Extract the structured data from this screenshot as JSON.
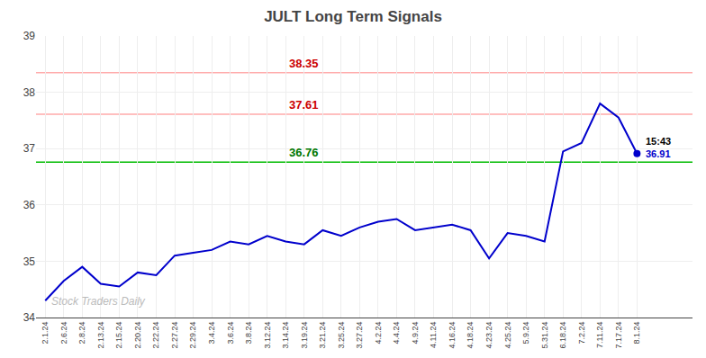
{
  "chart_data": {
    "type": "line",
    "title": "JULT Long Term Signals",
    "categories": [
      "2.1.24",
      "2.6.24",
      "2.8.24",
      "2.13.24",
      "2.15.24",
      "2.20.24",
      "2.22.24",
      "2.27.24",
      "2.29.24",
      "3.4.24",
      "3.6.24",
      "3.8.24",
      "3.12.24",
      "3.14.24",
      "3.19.24",
      "3.21.24",
      "3.25.24",
      "3.27.24",
      "4.2.24",
      "4.4.24",
      "4.9.24",
      "4.11.24",
      "4.16.24",
      "4.18.24",
      "4.23.24",
      "4.25.24",
      "5.9.24",
      "5.31.24",
      "6.18.24",
      "7.2.24",
      "7.11.24",
      "7.17.24",
      "8.1.24"
    ],
    "values": [
      34.3,
      34.65,
      34.9,
      34.6,
      34.55,
      34.8,
      34.75,
      35.1,
      35.15,
      35.2,
      35.35,
      35.3,
      35.45,
      35.35,
      35.3,
      35.55,
      35.45,
      35.6,
      35.7,
      35.75,
      35.55,
      35.6,
      35.65,
      35.55,
      35.05,
      35.5,
      35.45,
      35.35,
      36.95,
      37.1,
      37.8,
      37.55,
      36.91
    ],
    "color": "#0000cc",
    "hlines": [
      {
        "value": 38.35,
        "label": "38.35",
        "color": "#ffaaaa",
        "label_color": "#cc0000"
      },
      {
        "value": 37.61,
        "label": "37.61",
        "color": "#ffaaaa",
        "label_color": "#cc0000"
      },
      {
        "value": 36.76,
        "label": "36.76",
        "color": "#00bb00",
        "label_color": "#007700"
      }
    ],
    "annotations": [
      {
        "text": "Stock Traders Daily",
        "color": "#bbbbbb"
      },
      {
        "text": "15:43",
        "color": "#000000"
      },
      {
        "text": "36.91",
        "color": "#0000cc"
      }
    ],
    "ylim": [
      34.0,
      39.0
    ],
    "yticks": [
      34,
      35,
      36,
      37,
      38,
      39
    ],
    "grid": true
  }
}
